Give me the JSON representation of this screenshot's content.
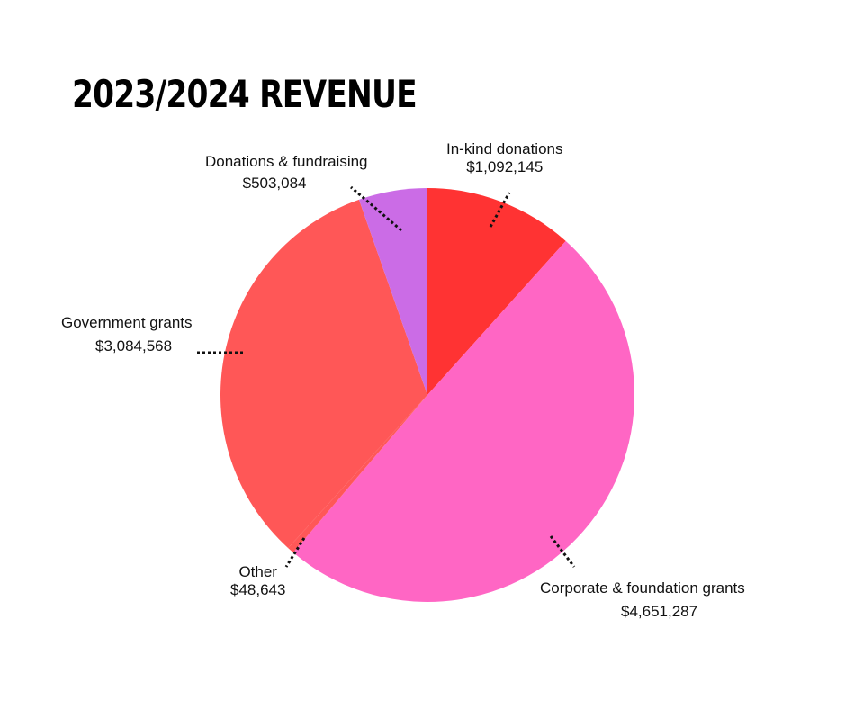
{
  "chart_data": {
    "type": "pie",
    "title": "2023/2024 REVENUE",
    "slices": [
      {
        "name": "In-kind donations",
        "value_label": "$1,092,145",
        "value": 1092145,
        "color": "#ff3333"
      },
      {
        "name": "Corporate & foundation grants",
        "value_label": "$4,651,287",
        "value": 4651287,
        "color": "#ff66c4"
      },
      {
        "name": "Other",
        "value_label": "$48,643",
        "value": 48643,
        "color": "#ff5757"
      },
      {
        "name": "Government grants",
        "value_label": "$3,084,568",
        "value": 3084568,
        "color": "#ff5757"
      },
      {
        "name": "Donations & fundraising",
        "value_label": "$503,084",
        "value": 503084,
        "color": "#cb6ce6"
      }
    ]
  }
}
